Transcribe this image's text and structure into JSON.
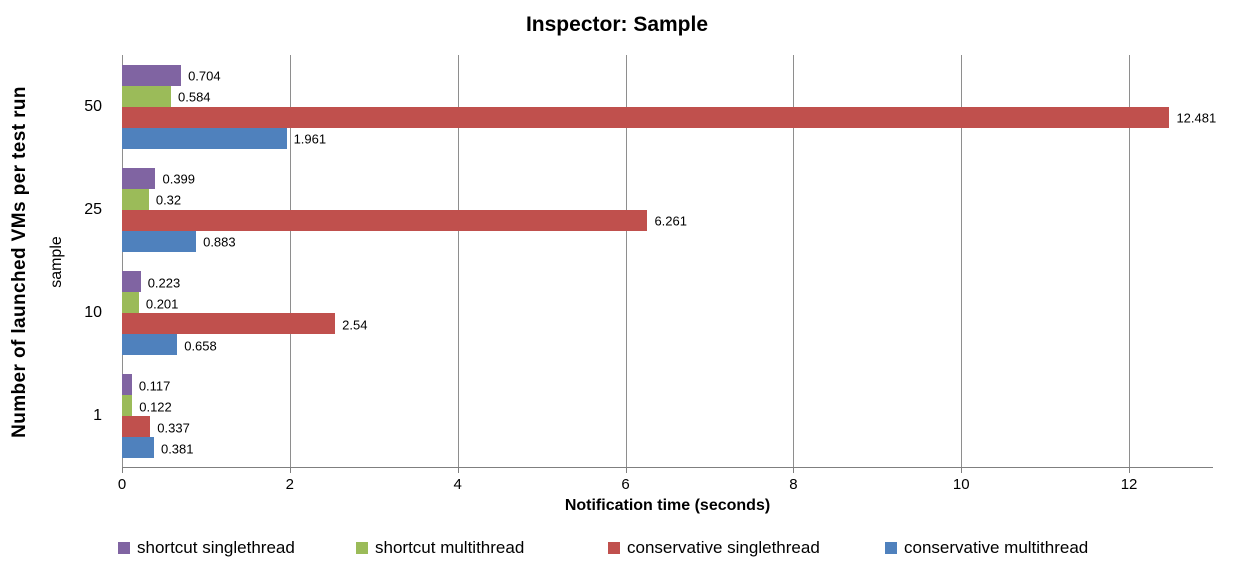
{
  "title": "Inspector: Sample",
  "chart_data": {
    "type": "bar",
    "orientation": "horizontal",
    "title": "Inspector: Sample",
    "xlabel": "Notification time (seconds)",
    "ylabel": "Number of launched VMs per test run",
    "ylabel_secondary": "sample",
    "categories": [
      "50",
      "25",
      "10",
      "1"
    ],
    "series": [
      {
        "name": "shortcut singlethread",
        "color": "#8064A2",
        "values": [
          0.704,
          0.399,
          0.223,
          0.117
        ],
        "labels": [
          "0.704",
          "0.399",
          "0.223",
          "0.117"
        ]
      },
      {
        "name": "shortcut multithread",
        "color": "#9BBB59",
        "values": [
          0.584,
          0.32,
          0.201,
          0.122
        ],
        "labels": [
          "0.584",
          "0.32",
          "0.201",
          "0.122"
        ]
      },
      {
        "name": "conservative singlethread",
        "color": "#C0504D",
        "values": [
          12.481,
          6.261,
          2.54,
          0.337
        ],
        "labels": [
          "12.481",
          "6.261",
          "2.54",
          "0.337"
        ]
      },
      {
        "name": "conservative multithread",
        "color": "#4F81BD",
        "values": [
          1.961,
          0.883,
          0.658,
          0.381
        ],
        "labels": [
          "1.961",
          "0.883",
          "0.658",
          "0.381"
        ]
      }
    ],
    "xlim": [
      0,
      13
    ],
    "x_ticks": [
      0,
      2,
      4,
      6,
      8,
      10,
      12
    ],
    "grid": true,
    "legend_position": "bottom",
    "gridline_color": "#8E8E8E",
    "axis_color": "#7F7F7F"
  }
}
